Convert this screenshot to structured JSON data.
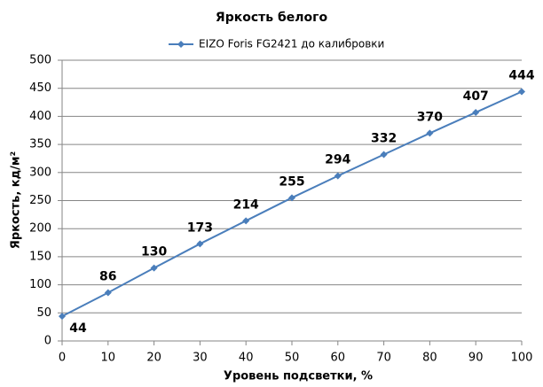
{
  "chart_data": {
    "type": "line",
    "title": "Яркость белого",
    "x_label": "Уровень подсветки, %",
    "y_label": "Яркость, кд/м²",
    "x": [
      0,
      10,
      20,
      30,
      40,
      50,
      60,
      70,
      80,
      90,
      100
    ],
    "series": [
      {
        "name": "EIZO Foris FG2421 до калибровки",
        "color": "#4a7ebb",
        "values": [
          44,
          86,
          130,
          173,
          214,
          255,
          294,
          332,
          370,
          407,
          444
        ]
      }
    ],
    "xlim": [
      0,
      100
    ],
    "xticks": [
      0,
      10,
      20,
      30,
      40,
      50,
      60,
      70,
      80,
      90,
      100
    ],
    "ylim": [
      0,
      500
    ],
    "yticks": [
      0,
      50,
      100,
      150,
      200,
      250,
      300,
      350,
      400,
      450,
      500
    ],
    "grid": true,
    "legend": "top"
  }
}
